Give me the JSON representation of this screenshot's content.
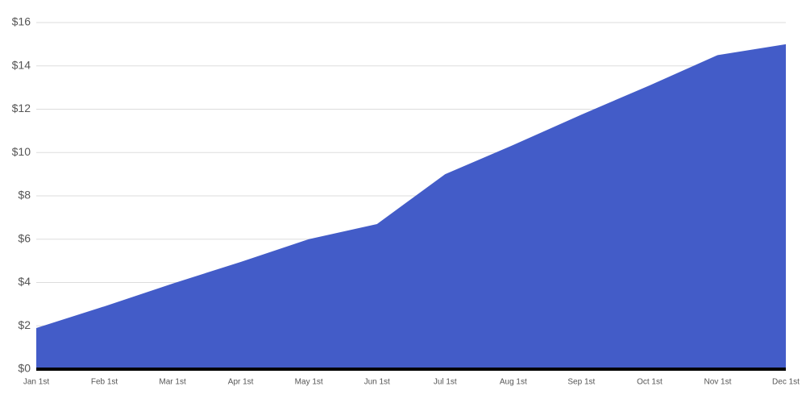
{
  "chart_data": {
    "type": "area",
    "categories": [
      "Jan 1st",
      "Feb 1st",
      "Mar 1st",
      "Apr 1st",
      "May 1st",
      "Jun 1st",
      "Jul 1st",
      "Aug 1st",
      "Sep 1st",
      "Oct 1st",
      "Nov 1st",
      "Dec 1st"
    ],
    "values": [
      1.9,
      2.9,
      3.95,
      4.95,
      6.0,
      6.7,
      9.0,
      10.35,
      11.75,
      13.1,
      14.5,
      15.0
    ],
    "color": "#435cc8",
    "ylim": [
      0,
      16
    ],
    "yticks": [
      {
        "value": 0,
        "label": "$0"
      },
      {
        "value": 2,
        "label": "$2"
      },
      {
        "value": 4,
        "label": "$4"
      },
      {
        "value": 6,
        "label": "$6"
      },
      {
        "value": 8,
        "label": "$8"
      },
      {
        "value": 10,
        "label": "$10"
      },
      {
        "value": 12,
        "label": "$12"
      },
      {
        "value": 14,
        "label": "$14"
      },
      {
        "value": 16,
        "label": "$16"
      }
    ],
    "grid": true
  }
}
